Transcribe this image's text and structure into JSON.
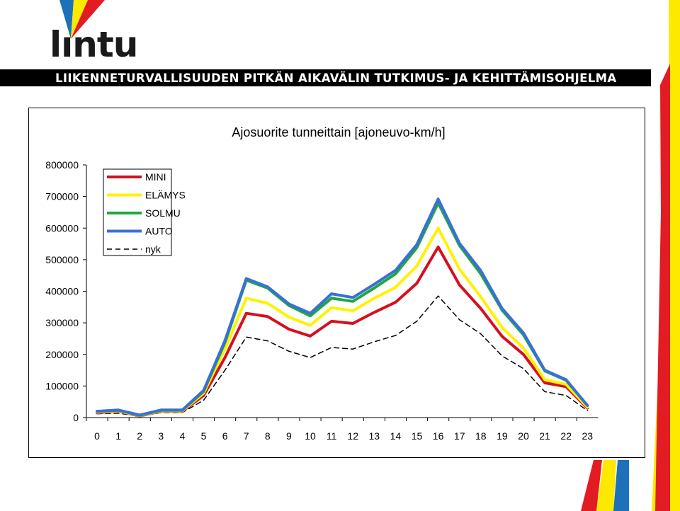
{
  "header": {
    "logo_text": "lıntu",
    "banner": "LIIKENNETURVALLISUUDEN PITKÄN AIKAVÄLIN TUTKIMUS- JA KEHITTÄMISOHJELMA"
  },
  "colors": {
    "mini": "#d4101f",
    "elamys": "#fff200",
    "solmu": "#1ea83c",
    "auto": "#3a6fd8",
    "nyk": "#000000",
    "stripe_red": "#e31b23",
    "stripe_yellow": "#fde800",
    "stripe_blue": "#1d71b8"
  },
  "chart_data": {
    "type": "line",
    "title": "Ajosuorite tunneittain [ajoneuvo-km/h]",
    "xlabel": "",
    "ylabel": "",
    "ylim": [
      0,
      800000
    ],
    "yticks": [
      "0",
      "100000",
      "200000",
      "300000",
      "400000",
      "500000",
      "600000",
      "700000",
      "800000"
    ],
    "categories": [
      "0",
      "1",
      "2",
      "3",
      "4",
      "5",
      "6",
      "7",
      "8",
      "9",
      "10",
      "11",
      "12",
      "13",
      "14",
      "15",
      "16",
      "17",
      "18",
      "19",
      "20",
      "21",
      "22",
      "23"
    ],
    "legend_position": "top-left",
    "series": [
      {
        "name": "MINI",
        "color_key": "mini",
        "dash": false,
        "values": [
          15000,
          20000,
          5000,
          20000,
          20000,
          70000,
          190000,
          330000,
          320000,
          280000,
          258000,
          305000,
          298000,
          333000,
          365000,
          425000,
          540000,
          420000,
          345000,
          257000,
          200000,
          110000,
          98000,
          30000
        ]
      },
      {
        "name": "ELÄMYS",
        "color_key": "elamys",
        "dash": false,
        "values": [
          17000,
          21000,
          6000,
          21000,
          21000,
          77000,
          218000,
          378000,
          362000,
          318000,
          292000,
          348000,
          338000,
          378000,
          412000,
          480000,
          600000,
          470000,
          382000,
          285000,
          220000,
          120000,
          105000,
          33000
        ]
      },
      {
        "name": "SOLMU",
        "color_key": "solmu",
        "dash": false,
        "values": [
          19000,
          23000,
          7000,
          23000,
          23000,
          83000,
          238000,
          435000,
          410000,
          355000,
          322000,
          378000,
          368000,
          410000,
          455000,
          538000,
          680000,
          545000,
          455000,
          340000,
          262000,
          148000,
          118000,
          38000
        ]
      },
      {
        "name": "AUTO",
        "color_key": "auto",
        "dash": false,
        "values": [
          20000,
          24000,
          8000,
          24000,
          24000,
          86000,
          244000,
          440000,
          414000,
          360000,
          330000,
          392000,
          380000,
          422000,
          466000,
          548000,
          692000,
          552000,
          465000,
          345000,
          268000,
          150000,
          120000,
          38000
        ]
      },
      {
        "name": "nyk",
        "color_key": "nyk",
        "dash": true,
        "values": [
          12000,
          14000,
          4000,
          16000,
          16000,
          55000,
          150000,
          255000,
          243000,
          210000,
          190000,
          222000,
          217000,
          240000,
          260000,
          305000,
          385000,
          310000,
          265000,
          195000,
          155000,
          82000,
          70000,
          22000
        ]
      }
    ]
  }
}
